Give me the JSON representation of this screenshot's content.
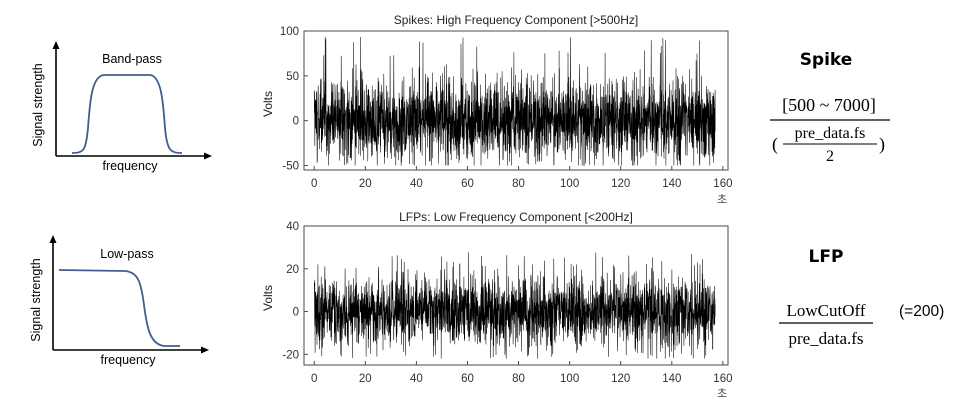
{
  "filters": {
    "bandpass": {
      "title": "Band-pass",
      "ylabel": "Signal strength",
      "xlabel": "frequency",
      "curve_color": "#3e5f8e"
    },
    "lowpass": {
      "title": "Low-pass",
      "ylabel": "Signal strength",
      "xlabel": "frequency",
      "curve_color": "#3e5f8e"
    }
  },
  "chart_data": [
    {
      "type": "line",
      "title": "Spikes: High Frequency Component [>500Hz]",
      "xlabel": "초",
      "ylabel": "Volts",
      "xlim": [
        -4,
        162
      ],
      "ylim": [
        -55,
        100
      ],
      "xticks": [
        0,
        20,
        40,
        60,
        80,
        100,
        120,
        140,
        160
      ],
      "yticks": [
        -50,
        0,
        50,
        100
      ],
      "grid": false,
      "series": [
        {
          "color": "#000000",
          "description_range": [
            -50,
            95
          ],
          "x_range": [
            0,
            157
          ]
        }
      ]
    },
    {
      "type": "line",
      "title": "LFPs: Low Frequency Component [<200Hz]",
      "xlabel": "초",
      "ylabel": "Volts",
      "xlim": [
        -4,
        162
      ],
      "ylim": [
        -25,
        40
      ],
      "xticks": [
        0,
        20,
        40,
        60,
        80,
        100,
        120,
        140,
        160
      ],
      "yticks": [
        -20,
        0,
        20,
        40
      ],
      "grid": false,
      "series": [
        {
          "color": "#000000",
          "description_range": [
            -22,
            28
          ],
          "x_range": [
            0,
            157
          ]
        }
      ]
    }
  ],
  "spike_formula": {
    "heading": "Spike",
    "numerator": "[500 ~ 7000]",
    "open_paren": "(",
    "inner_numerator": "pre_data.fs",
    "inner_denominator": "2",
    "close_paren": ")"
  },
  "lfp_formula": {
    "heading": "LFP",
    "numerator": "LowCutOff",
    "denominator": "pre_data.fs",
    "note": "(=200)"
  }
}
